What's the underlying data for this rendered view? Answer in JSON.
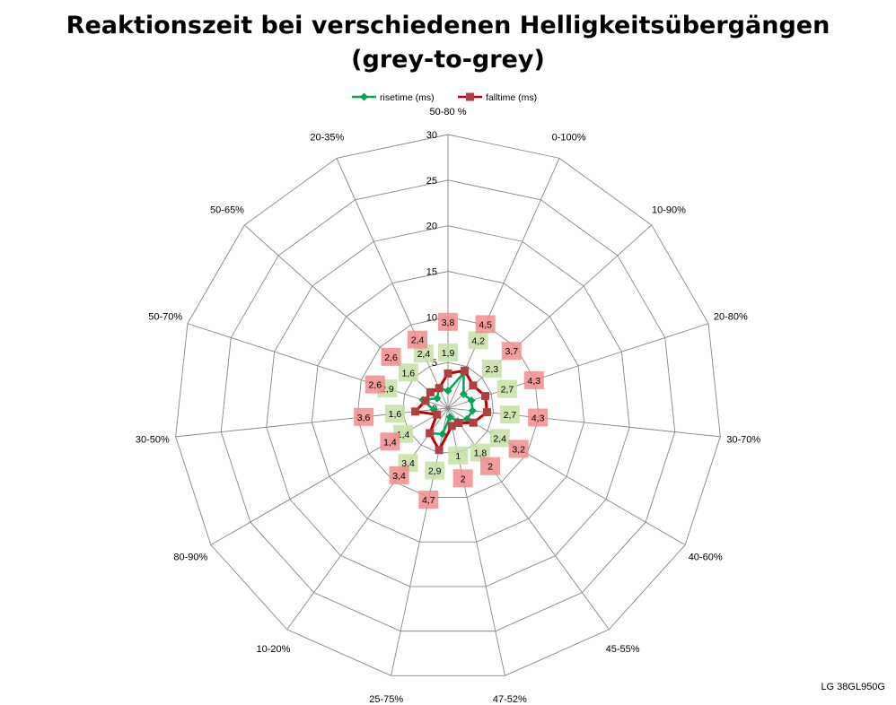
{
  "title_line1": "Reaktionszeit bei verschiedenen Helligkeitsübergängen",
  "title_line2": "(grey-to-grey)",
  "watermark": "LG 38GL950G",
  "chart_data": {
    "type": "radar",
    "categories": [
      "50-80 %",
      "0-100%",
      "10-90%",
      "20-80%",
      "30-70%",
      "40-60%",
      "45-55%",
      "47-52%",
      "25-75%",
      "10-20%",
      "80-90%",
      "30-50%",
      "50-70%",
      "50-65%",
      "20-35%"
    ],
    "ylim": [
      0,
      30
    ],
    "ticks": [
      0,
      5,
      10,
      15,
      20,
      25,
      30
    ],
    "grid": true,
    "legend_position": "top",
    "series": [
      {
        "name": "risetime (ms)",
        "color": "#00A651",
        "marker": "diamond",
        "label_bg": "#C6E0A6",
        "values": [
          1.9,
          4.2,
          2.3,
          2.7,
          2.7,
          2.4,
          1.8,
          1.0,
          2.9,
          3.4,
          1.4,
          1.6,
          2.9,
          1.6,
          2.4
        ]
      },
      {
        "name": "falltime (ms)",
        "color": "#C00000",
        "marker": "square",
        "label_bg": "#F28C8C",
        "values": [
          3.8,
          4.5,
          3.7,
          4.3,
          4.3,
          3.2,
          2.0,
          2.0,
          4.7,
          3.4,
          1.4,
          3.6,
          2.6,
          2.6,
          2.4
        ]
      }
    ]
  }
}
